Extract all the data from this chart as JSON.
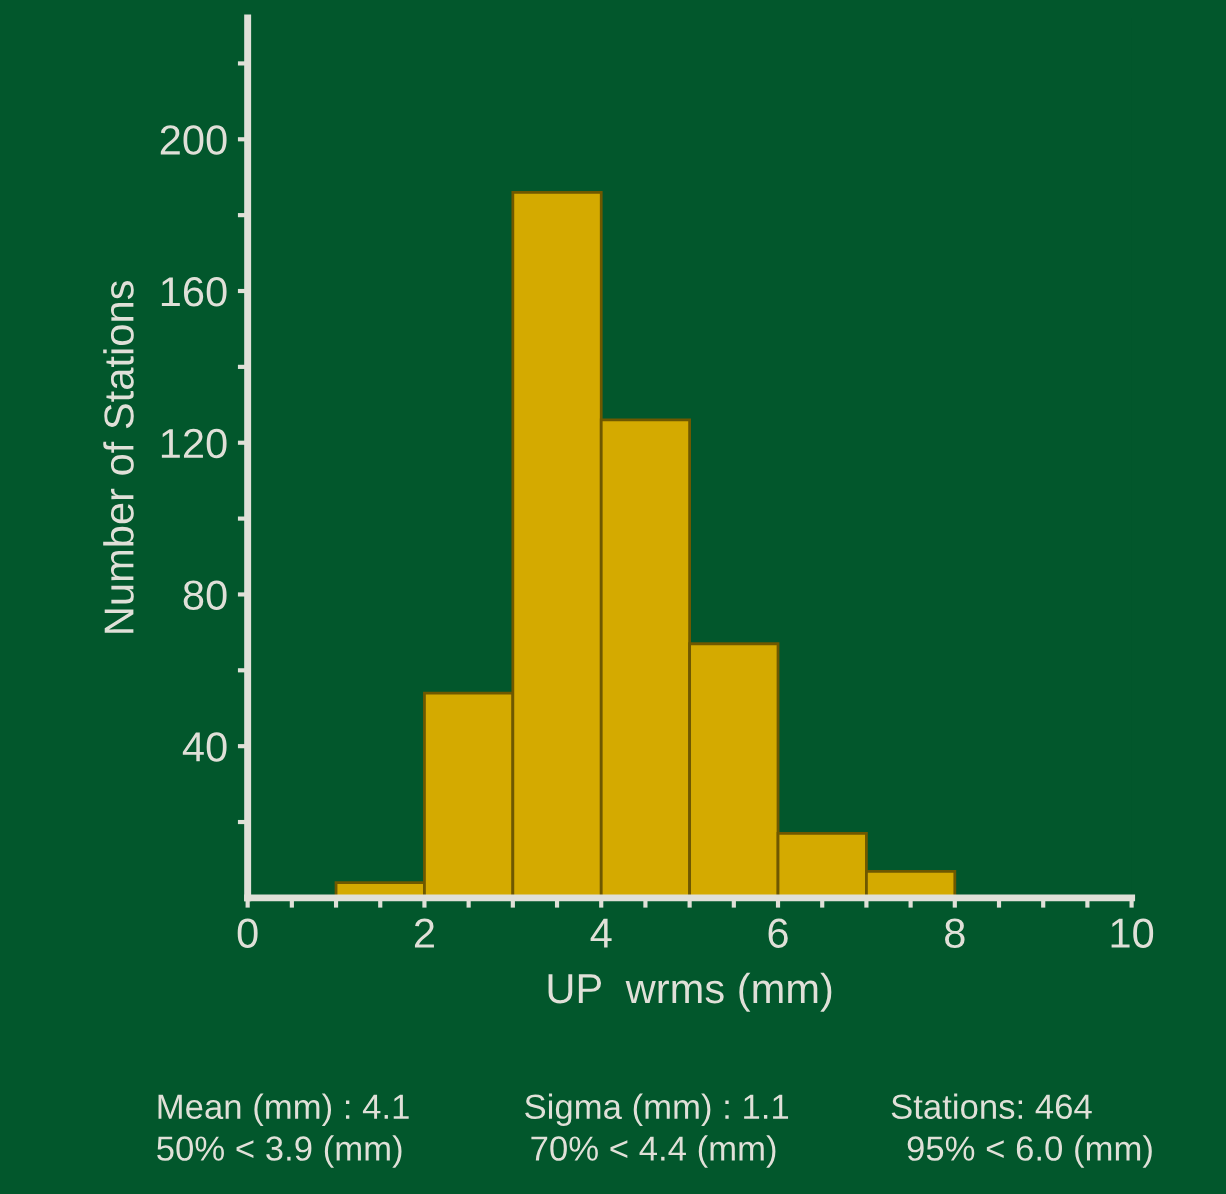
{
  "chart_data": {
    "type": "histogram",
    "xlabel": "UP  wrms (mm)",
    "ylabel": "Number of Stations",
    "bins": [
      0,
      1,
      2,
      3,
      4,
      5,
      6,
      7,
      8,
      9,
      10
    ],
    "values": [
      0,
      4,
      54,
      186,
      126,
      67,
      17,
      7,
      0,
      0
    ],
    "color": "#d4aa00",
    "xlim": [
      0,
      10
    ],
    "ylim": [
      0,
      232
    ],
    "xticks": [
      0,
      {
        "value": 0.5,
        "label": null
      },
      {
        "value": 1,
        "label": null
      },
      {
        "value": 1.5,
        "label": null
      },
      2,
      {
        "value": 2.5,
        "label": null
      },
      {
        "value": 3,
        "label": null
      },
      {
        "value": 3.5,
        "label": null
      },
      4,
      {
        "value": 4.5,
        "label": null
      },
      {
        "value": 5,
        "label": null
      },
      {
        "value": 5.5,
        "label": null
      },
      6,
      {
        "value": 6.5,
        "label": null
      },
      {
        "value": 7,
        "label": null
      },
      {
        "value": 7.5,
        "label": null
      },
      8,
      {
        "value": 8.5,
        "label": null
      },
      {
        "value": 9,
        "label": null
      },
      {
        "value": 9.5,
        "label": null
      },
      10
    ],
    "yticks": [
      {
        "value": 20,
        "label": null
      },
      40,
      {
        "value": 60,
        "label": null
      },
      80,
      {
        "value": 100,
        "label": null
      },
      120,
      {
        "value": 140,
        "label": null
      },
      160,
      {
        "value": 180,
        "label": null
      },
      200,
      {
        "value": 220,
        "label": null
      }
    ],
    "grid": false,
    "annotations": [
      "Mean (mm) : 4.1",
      "Sigma (mm) : 1.1",
      "Stations: 464",
      "50% < 3.9 (mm)",
      "70% < 4.4 (mm)",
      "95% < 6.0 (mm)"
    ]
  }
}
